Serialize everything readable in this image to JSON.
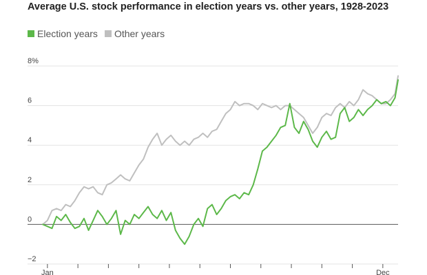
{
  "chart_data": {
    "type": "line",
    "title": "Average U.S. stock performance in election years vs. other years, 1928-2023",
    "xlabel": "",
    "ylabel": "",
    "ylim": [
      -2,
      8
    ],
    "yticks": [
      {
        "value": -2,
        "label": "−2"
      },
      {
        "value": 0,
        "label": "0"
      },
      {
        "value": 2,
        "label": "2"
      },
      {
        "value": 4,
        "label": "4"
      },
      {
        "value": 6,
        "label": "6"
      },
      {
        "value": 8,
        "label": "8%"
      }
    ],
    "xticks": [
      {
        "value": 0,
        "label": "Jan"
      },
      {
        "value": 1,
        "label": ""
      },
      {
        "value": 2,
        "label": ""
      },
      {
        "value": 3,
        "label": ""
      },
      {
        "value": 4,
        "label": ""
      },
      {
        "value": 5,
        "label": ""
      },
      {
        "value": 6,
        "label": ""
      },
      {
        "value": 7,
        "label": ""
      },
      {
        "value": 8,
        "label": ""
      },
      {
        "value": 9,
        "label": ""
      },
      {
        "value": 10,
        "label": ""
      },
      {
        "value": 11,
        "label": "Dec"
      }
    ],
    "xlim": [
      -0.2,
      11.5
    ],
    "grid": true,
    "legend_position": "top-left",
    "series": [
      {
        "name": "Election years",
        "color": "#5cb849",
        "x": [
          -0.15,
          0,
          0.15,
          0.3,
          0.45,
          0.6,
          0.75,
          0.9,
          1.05,
          1.2,
          1.35,
          1.5,
          1.65,
          1.8,
          1.95,
          2.1,
          2.25,
          2.4,
          2.55,
          2.7,
          2.85,
          3.0,
          3.15,
          3.3,
          3.45,
          3.6,
          3.75,
          3.9,
          4.05,
          4.2,
          4.35,
          4.5,
          4.65,
          4.8,
          4.95,
          5.1,
          5.25,
          5.4,
          5.55,
          5.7,
          5.85,
          6.0,
          6.15,
          6.3,
          6.45,
          6.6,
          6.75,
          6.9,
          7.05,
          7.2,
          7.35,
          7.5,
          7.65,
          7.8,
          7.95,
          8.1,
          8.25,
          8.4,
          8.55,
          8.7,
          8.85,
          9.0,
          9.15,
          9.3,
          9.45,
          9.6,
          9.75,
          9.9,
          10.05,
          10.2,
          10.35,
          10.5,
          10.65,
          10.8,
          10.95,
          11.1,
          11.25,
          11.4,
          11.5
        ],
        "y": [
          0.0,
          -0.1,
          -0.2,
          0.4,
          0.2,
          0.5,
          0.1,
          -0.2,
          -0.1,
          0.3,
          -0.3,
          0.2,
          0.7,
          0.4,
          0.0,
          0.3,
          0.7,
          -0.5,
          0.2,
          0.0,
          0.5,
          0.3,
          0.6,
          0.9,
          0.5,
          0.3,
          0.7,
          0.2,
          0.6,
          -0.3,
          -0.7,
          -1.0,
          -0.6,
          0.0,
          0.3,
          -0.1,
          0.8,
          1.0,
          0.5,
          0.8,
          1.2,
          1.4,
          1.5,
          1.3,
          1.6,
          1.5,
          2.0,
          2.8,
          3.7,
          3.9,
          4.2,
          4.5,
          4.9,
          5.0,
          6.1,
          4.9,
          4.6,
          5.2,
          4.8,
          4.2,
          3.9,
          4.4,
          4.7,
          4.3,
          4.4,
          5.6,
          5.9,
          5.2,
          5.4,
          5.8,
          5.5,
          5.8,
          6.0,
          6.3,
          6.1,
          6.2,
          6.0,
          6.4,
          7.3
        ]
      },
      {
        "name": "Other years",
        "color": "#bfbfbf",
        "x": [
          -0.15,
          0,
          0.15,
          0.3,
          0.45,
          0.6,
          0.75,
          0.9,
          1.05,
          1.2,
          1.35,
          1.5,
          1.65,
          1.8,
          1.95,
          2.1,
          2.25,
          2.4,
          2.55,
          2.7,
          2.85,
          3.0,
          3.15,
          3.3,
          3.45,
          3.6,
          3.75,
          3.9,
          4.05,
          4.2,
          4.35,
          4.5,
          4.65,
          4.8,
          4.95,
          5.1,
          5.25,
          5.4,
          5.55,
          5.7,
          5.85,
          6.0,
          6.15,
          6.3,
          6.45,
          6.6,
          6.75,
          6.9,
          7.05,
          7.2,
          7.35,
          7.5,
          7.65,
          7.8,
          7.95,
          8.1,
          8.25,
          8.4,
          8.55,
          8.7,
          8.85,
          9.0,
          9.15,
          9.3,
          9.45,
          9.6,
          9.75,
          9.9,
          10.05,
          10.2,
          10.35,
          10.5,
          10.65,
          10.8,
          10.95,
          11.1,
          11.25,
          11.4,
          11.5
        ],
        "y": [
          0.0,
          0.2,
          0.7,
          0.8,
          0.7,
          1.0,
          0.9,
          1.2,
          1.6,
          1.9,
          1.8,
          1.9,
          1.6,
          1.5,
          2.0,
          2.1,
          2.3,
          2.5,
          2.3,
          2.2,
          2.6,
          3.0,
          3.3,
          3.9,
          4.3,
          4.6,
          4.0,
          4.3,
          4.5,
          4.2,
          4.0,
          4.2,
          4.0,
          4.3,
          4.4,
          4.6,
          4.4,
          4.7,
          4.8,
          5.2,
          5.6,
          5.8,
          6.2,
          6.0,
          6.1,
          6.1,
          6.0,
          5.8,
          6.1,
          6.0,
          5.9,
          6.0,
          5.8,
          6.0,
          6.0,
          5.8,
          5.6,
          5.4,
          5.0,
          4.6,
          4.9,
          5.4,
          5.6,
          5.5,
          5.9,
          6.1,
          5.9,
          6.2,
          6.0,
          6.3,
          6.8,
          6.6,
          6.5,
          6.3,
          6.1,
          6.1,
          6.3,
          6.6,
          7.5
        ]
      }
    ]
  }
}
